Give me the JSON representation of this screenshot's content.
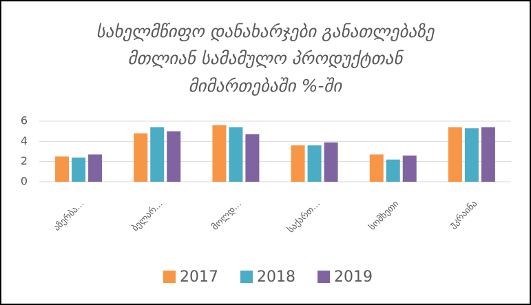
{
  "chart_data": {
    "type": "bar",
    "title": [
      "სახელმწიფო დანახარჯები განათლებაზე",
      "მთლიან სამამულო პროდუქტთან",
      "მიმართებაში  %-ში"
    ],
    "categories": [
      "აზერბა...",
      "ბელარ...",
      "მოლდ...",
      "საქართ...",
      "სომხეთი",
      "უკრაინა"
    ],
    "series": [
      {
        "name": "2017",
        "color": "#f79646",
        "values": [
          2.5,
          4.8,
          5.6,
          3.6,
          2.7,
          5.4
        ]
      },
      {
        "name": "2018",
        "color": "#4bacc6",
        "values": [
          2.4,
          5.4,
          5.4,
          3.6,
          2.2,
          5.3
        ]
      },
      {
        "name": "2019",
        "color": "#8064a2",
        "values": [
          2.7,
          5.0,
          4.7,
          3.9,
          2.6,
          5.4
        ]
      }
    ],
    "ylim": [
      0,
      6
    ],
    "yticks": [
      0,
      2,
      4,
      6
    ],
    "grid": true,
    "legend": "bottom"
  }
}
